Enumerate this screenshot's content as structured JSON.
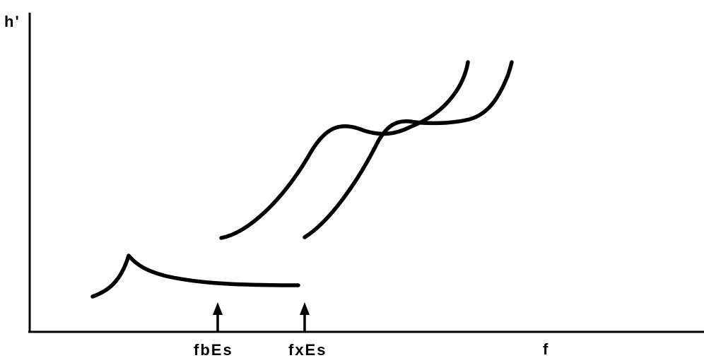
{
  "diagram": {
    "y_axis_label": "h'",
    "x_axis_label": "f",
    "markers": [
      {
        "label": "fbEs"
      },
      {
        "label": "fxEs"
      }
    ],
    "traces": [
      {
        "name": "sporadic-e-trace"
      },
      {
        "name": "o-mode-trace"
      },
      {
        "name": "x-mode-trace"
      }
    ]
  }
}
